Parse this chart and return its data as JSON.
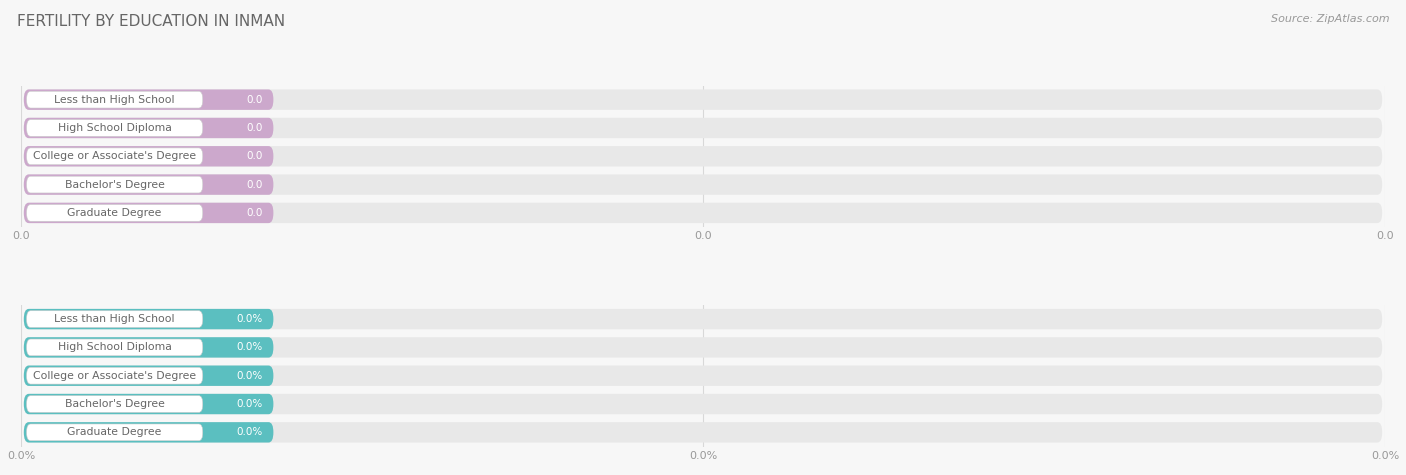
{
  "title": "FERTILITY BY EDUCATION IN INMAN",
  "source": "Source: ZipAtlas.com",
  "categories": [
    "Less than High School",
    "High School Diploma",
    "College or Associate's Degree",
    "Bachelor's Degree",
    "Graduate Degree"
  ],
  "values_top": [
    0.0,
    0.0,
    0.0,
    0.0,
    0.0
  ],
  "values_bottom": [
    0.0,
    0.0,
    0.0,
    0.0,
    0.0
  ],
  "bar_color_top": "#cca8cc",
  "bar_color_bottom": "#5bbfc0",
  "bar_bg_color": "#e8e8e8",
  "label_text_color": "#666666",
  "value_text_color_top": "#ffffff",
  "value_text_color_bot": "#ffffff",
  "tick_text_color": "#999999",
  "title_color": "#666666",
  "source_color": "#999999",
  "background_color": "#f7f7f7",
  "grid_color": "#d8d8d8",
  "figsize": [
    14.06,
    4.75
  ],
  "dpi": 100
}
